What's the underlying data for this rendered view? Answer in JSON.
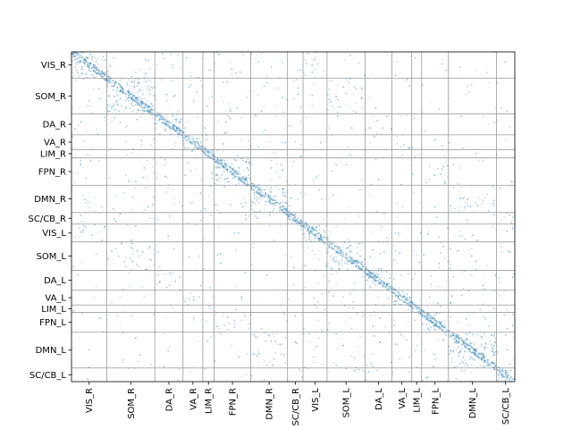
{
  "chart_data": {
    "type": "heatmap",
    "title": "",
    "xlabel": "",
    "ylabel": "",
    "labels": [
      "VIS_R",
      "SOM_R",
      "DA_R",
      "VA_R",
      "LIM_R",
      "FPN_R",
      "DMN_R",
      "SC/CB_R",
      "VIS_L",
      "SOM_L",
      "DA_L",
      "VA_L",
      "LIM_L",
      "FPN_L",
      "DMN_L",
      "SC/CB_L"
    ],
    "block_sizes": [
      25,
      34,
      20,
      14,
      8,
      26,
      26,
      11,
      17,
      27,
      19,
      14,
      7,
      19,
      34,
      13
    ],
    "total_nodes": 314,
    "grid": true,
    "point_color": "#1f77b4",
    "grid_color": "#999999",
    "cell_values_visible": false
  }
}
